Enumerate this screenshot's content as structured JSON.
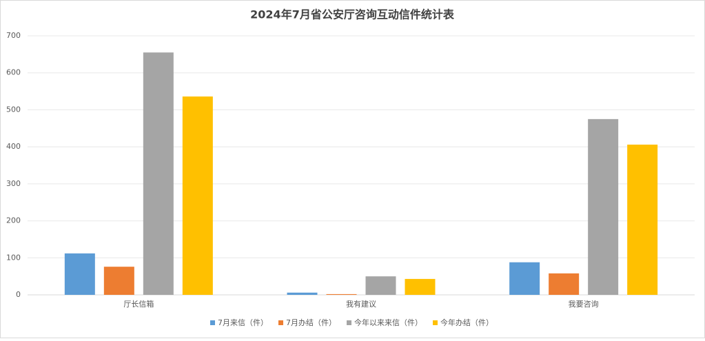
{
  "chart_data": {
    "type": "bar",
    "title": "2024年7月省公安厅咨询互动信件统计表",
    "categories": [
      "厅长信箱",
      "我有建议",
      "我要咨询"
    ],
    "series": [
      {
        "name": "7月来信（件）",
        "color": "#5b9bd5",
        "values": [
          112,
          6,
          88
        ]
      },
      {
        "name": "7月办结（件）",
        "color": "#ed7d31",
        "values": [
          76,
          2,
          58
        ]
      },
      {
        "name": "今年以来来信（件）",
        "color": "#a5a5a5",
        "values": [
          655,
          50,
          475
        ]
      },
      {
        "name": "今年办结（件）",
        "color": "#ffc000",
        "values": [
          536,
          43,
          406
        ]
      }
    ],
    "ylim": [
      0,
      700
    ],
    "yticks": [
      0,
      100,
      200,
      300,
      400,
      500,
      600,
      700
    ],
    "grid": true,
    "legend": "bottom"
  }
}
